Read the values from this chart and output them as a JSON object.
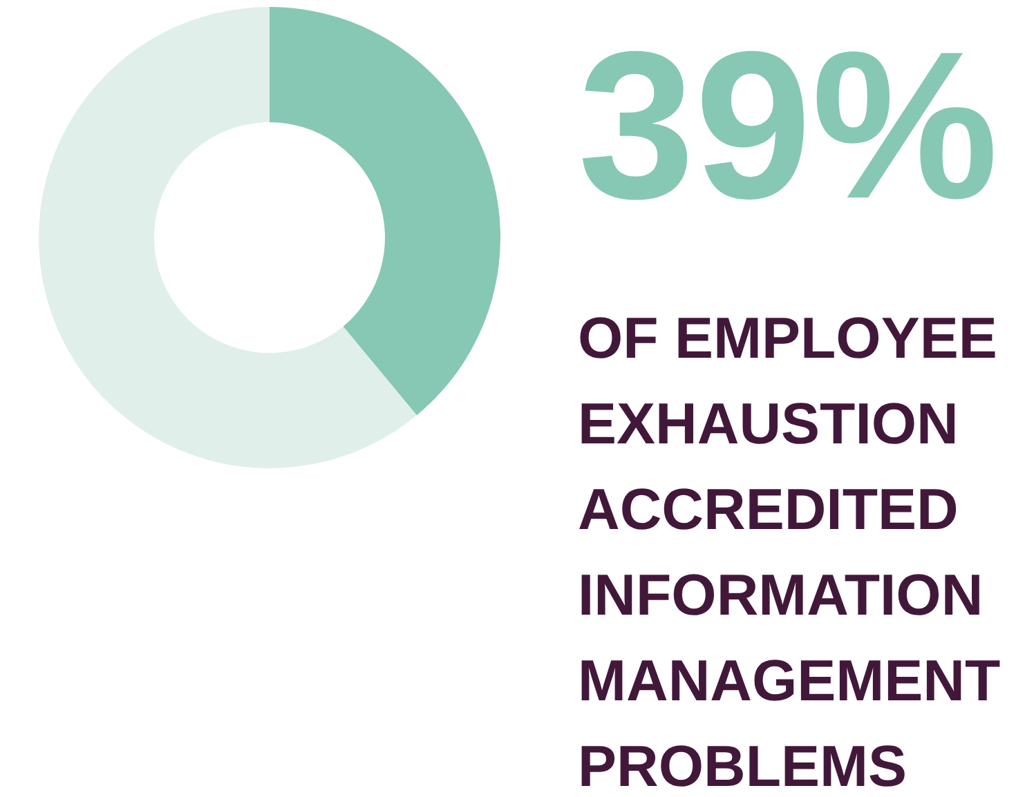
{
  "chart_data": {
    "type": "donut",
    "title": "39%",
    "subtitle": "OF EMPLOYEE EXHAUSTION ACCREDITED INFORMATION MANAGEMENT PROBLEMS",
    "categories": [
      null,
      null
    ],
    "values": [
      39,
      61
    ],
    "colors": [
      "#86c8b4",
      "#e0efe9"
    ],
    "legend": false
  }
}
